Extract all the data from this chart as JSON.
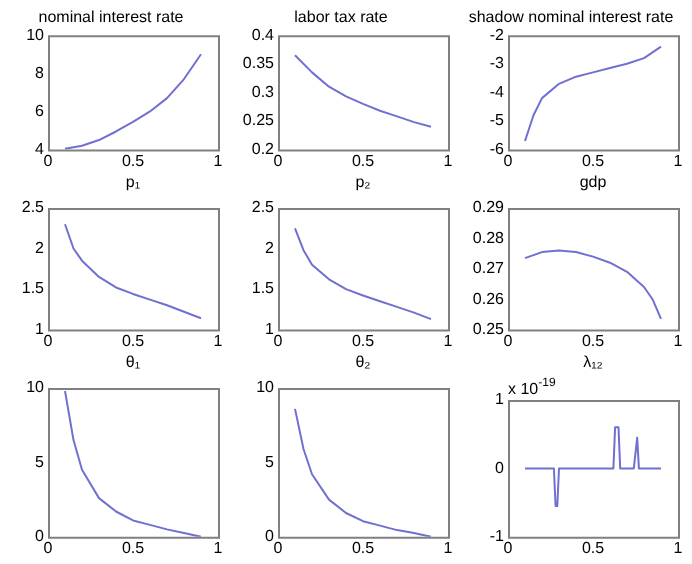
{
  "chart_data": [
    {
      "type": "line",
      "title": "nominal interest rate",
      "xlabel": "p₁",
      "x": [
        0.1,
        0.2,
        0.3,
        0.4,
        0.5,
        0.6,
        0.7,
        0.8,
        0.9
      ],
      "values": [
        4.05,
        4.2,
        4.5,
        4.95,
        5.45,
        6.0,
        6.7,
        7.7,
        9.0
      ],
      "color": "#7070d0",
      "xlim": [
        0,
        1
      ],
      "xticks": [
        0,
        0.5,
        1
      ],
      "ylim": [
        4,
        10
      ],
      "yticks": [
        4,
        6,
        8,
        10
      ]
    },
    {
      "type": "line",
      "title": "labor tax rate",
      "xlabel": "p₂",
      "x": [
        0.1,
        0.2,
        0.3,
        0.4,
        0.5,
        0.6,
        0.7,
        0.8,
        0.9
      ],
      "values": [
        0.365,
        0.335,
        0.31,
        0.293,
        0.28,
        0.268,
        0.258,
        0.248,
        0.24
      ],
      "color": "#7070d0",
      "xlim": [
        0,
        1
      ],
      "xticks": [
        0,
        0.5,
        1
      ],
      "ylim": [
        0.2,
        0.4
      ],
      "yticks": [
        0.2,
        0.25,
        0.3,
        0.35,
        0.4
      ]
    },
    {
      "type": "line",
      "title": "shadow nominal interest rate",
      "xlabel": "gdp",
      "x": [
        0.1,
        0.15,
        0.2,
        0.3,
        0.4,
        0.5,
        0.6,
        0.7,
        0.8,
        0.9
      ],
      "values": [
        -5.7,
        -4.8,
        -4.2,
        -3.7,
        -3.45,
        -3.3,
        -3.15,
        -3.0,
        -2.8,
        -2.4
      ],
      "color": "#7070d0",
      "xlim": [
        0,
        1
      ],
      "xticks": [
        0,
        0.5,
        1
      ],
      "ylim": [
        -6,
        -2
      ],
      "yticks": [
        -6,
        -5,
        -4,
        -3,
        -2
      ]
    },
    {
      "type": "line",
      "xlabel": "θ₁",
      "x": [
        0.1,
        0.15,
        0.2,
        0.3,
        0.4,
        0.5,
        0.6,
        0.7,
        0.8,
        0.9
      ],
      "values": [
        2.3,
        2.0,
        1.85,
        1.65,
        1.52,
        1.44,
        1.37,
        1.3,
        1.22,
        1.14
      ],
      "color": "#7070d0",
      "xlim": [
        0,
        1
      ],
      "xticks": [
        0,
        0.5,
        1
      ],
      "ylim": [
        1,
        2.5
      ],
      "yticks": [
        1,
        1.5,
        2,
        2.5
      ]
    },
    {
      "type": "line",
      "xlabel": "θ₂",
      "x": [
        0.1,
        0.15,
        0.2,
        0.3,
        0.4,
        0.5,
        0.6,
        0.7,
        0.8,
        0.9
      ],
      "values": [
        2.25,
        1.98,
        1.8,
        1.62,
        1.5,
        1.42,
        1.35,
        1.28,
        1.21,
        1.13
      ],
      "color": "#7070d0",
      "xlim": [
        0,
        1
      ],
      "xticks": [
        0,
        0.5,
        1
      ],
      "ylim": [
        1,
        2.5
      ],
      "yticks": [
        1,
        1.5,
        2,
        2.5
      ]
    },
    {
      "type": "line",
      "xlabel": "λ₁₂",
      "x": [
        0.1,
        0.2,
        0.3,
        0.4,
        0.5,
        0.6,
        0.7,
        0.8,
        0.85,
        0.9
      ],
      "values": [
        0.2735,
        0.2755,
        0.276,
        0.2755,
        0.274,
        0.272,
        0.269,
        0.264,
        0.26,
        0.2535
      ],
      "color": "#7070d0",
      "xlim": [
        0,
        1
      ],
      "xticks": [
        0,
        0.5,
        1
      ],
      "ylim": [
        0.25,
        0.29
      ],
      "yticks": [
        0.25,
        0.26,
        0.27,
        0.28,
        0.29
      ]
    },
    {
      "type": "line",
      "x": [
        0.1,
        0.15,
        0.2,
        0.3,
        0.4,
        0.5,
        0.6,
        0.7,
        0.8,
        0.9
      ],
      "values": [
        9.8,
        6.5,
        4.5,
        2.6,
        1.7,
        1.1,
        0.8,
        0.5,
        0.25,
        0
      ],
      "color": "#7070d0",
      "xlim": [
        0,
        1
      ],
      "xticks": [
        0,
        0.5,
        1
      ],
      "ylim": [
        0,
        10
      ],
      "yticks": [
        0,
        5,
        10
      ]
    },
    {
      "type": "line",
      "x": [
        0.1,
        0.15,
        0.2,
        0.3,
        0.4,
        0.5,
        0.6,
        0.7,
        0.8,
        0.9
      ],
      "values": [
        8.6,
        5.9,
        4.2,
        2.5,
        1.6,
        1.05,
        0.75,
        0.45,
        0.25,
        0
      ],
      "color": "#7070d0",
      "xlim": [
        0,
        1
      ],
      "xticks": [
        0,
        0.5,
        1
      ],
      "ylim": [
        0,
        10
      ],
      "yticks": [
        0,
        5,
        10
      ]
    },
    {
      "type": "line",
      "annotations": [
        "x 10$^{-19}$"
      ],
      "x": [
        0.1,
        0.27,
        0.28,
        0.29,
        0.3,
        0.62,
        0.63,
        0.65,
        0.66,
        0.74,
        0.76,
        0.77,
        0.9
      ],
      "values": [
        0,
        0,
        -0.55,
        -0.55,
        0,
        0,
        0.6,
        0.6,
        0,
        0,
        0.45,
        0,
        0
      ],
      "color": "#7070d0",
      "xlim": [
        0,
        1
      ],
      "xticks": [
        0,
        0.5,
        1
      ],
      "ylim": [
        -1,
        1
      ],
      "yticks": [
        -1,
        0,
        1
      ]
    }
  ]
}
